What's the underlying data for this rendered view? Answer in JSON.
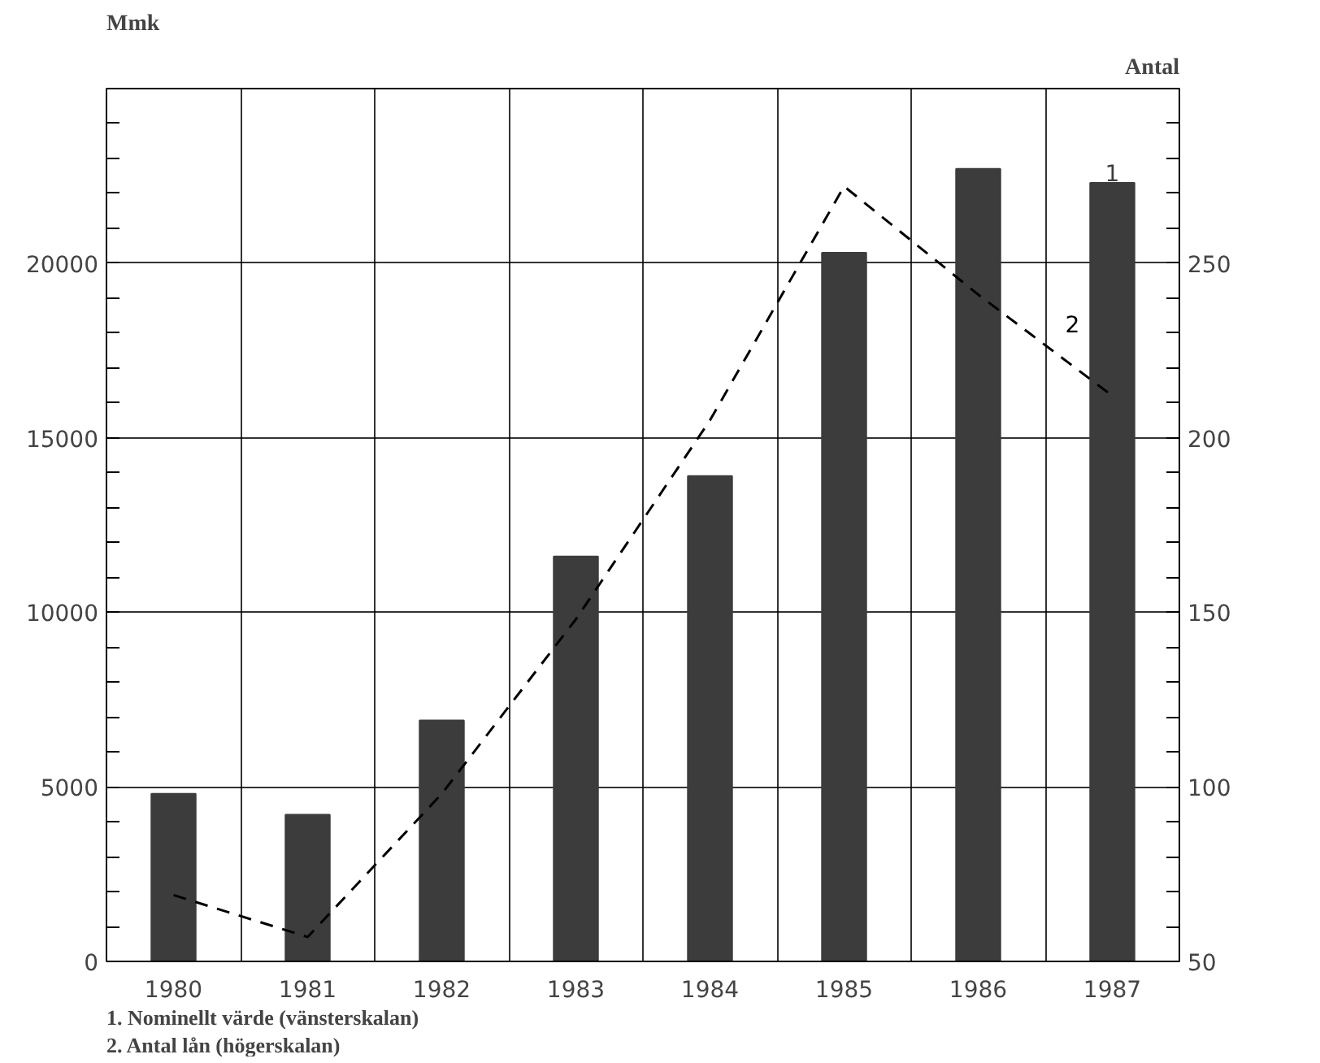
{
  "chart_data": {
    "type": "bar",
    "ylabel": "Mmk",
    "y2label": "Antal",
    "categories": [
      "1980",
      "1981",
      "1982",
      "1983",
      "1984",
      "1985",
      "1986",
      "1987"
    ],
    "series": [
      {
        "name": "1",
        "color": "#3c3c3c",
        "values": [
          4800,
          4200,
          6900,
          11600,
          13900,
          20300,
          22700,
          22300
        ]
      },
      {
        "name": "2",
        "type": "line",
        "axis": "y2",
        "color": "#000000",
        "line_style": "dashed",
        "values": [
          69,
          57,
          98,
          148,
          205,
          272,
          241,
          212
        ]
      }
    ],
    "ylim": [
      0,
      25000
    ],
    "yticks": [
      0,
      {
        "value": 1000,
        "label": null
      },
      {
        "value": 2000,
        "label": null
      },
      {
        "value": 3000,
        "label": null
      },
      {
        "value": 4000,
        "label": null
      },
      5000,
      {
        "value": 6000,
        "label": null
      },
      {
        "value": 7000,
        "label": null
      },
      {
        "value": 8000,
        "label": null
      },
      {
        "value": 9000,
        "label": null
      },
      10000,
      {
        "value": 11000,
        "label": null
      },
      {
        "value": 12000,
        "label": null
      },
      {
        "value": 13000,
        "label": null
      },
      {
        "value": 14000,
        "label": null
      },
      15000,
      {
        "value": 16000,
        "label": null
      },
      {
        "value": 17000,
        "label": null
      },
      {
        "value": 18000,
        "label": null
      },
      {
        "value": 19000,
        "label": null
      },
      20000,
      {
        "value": 21000,
        "label": null
      },
      {
        "value": 22000,
        "label": null
      },
      {
        "value": 23000,
        "label": null
      },
      {
        "value": 24000,
        "label": null
      }
    ],
    "y2lim": [
      50,
      300
    ],
    "y2ticks": [
      50,
      {
        "value": 60,
        "label": null
      },
      {
        "value": 70,
        "label": null
      },
      {
        "value": 80,
        "label": null
      },
      {
        "value": 90,
        "label": null
      },
      100,
      {
        "value": 110,
        "label": null
      },
      {
        "value": 120,
        "label": null
      },
      {
        "value": 130,
        "label": null
      },
      {
        "value": 140,
        "label": null
      },
      150,
      {
        "value": 160,
        "label": null
      },
      {
        "value": 170,
        "label": null
      },
      {
        "value": 180,
        "label": null
      },
      {
        "value": 190,
        "label": null
      },
      200,
      {
        "value": 210,
        "label": null
      },
      {
        "value": 220,
        "label": null
      },
      {
        "value": 230,
        "label": null
      },
      {
        "value": 240,
        "label": null
      },
      250,
      {
        "value": 260,
        "label": null
      },
      {
        "value": 270,
        "label": null
      },
      {
        "value": 280,
        "label": null
      },
      {
        "value": 290,
        "label": null
      }
    ],
    "grid": true,
    "annotations": [
      "1. Nominellt värde (vänsterskalan)",
      "2. Antal lån (högerskalan)"
    ]
  }
}
